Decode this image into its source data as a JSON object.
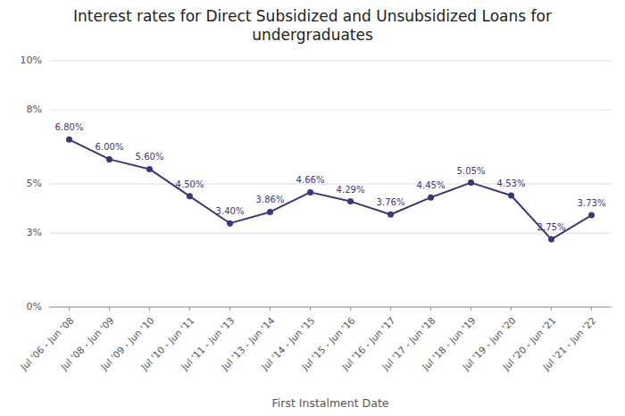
{
  "chart_data": {
    "type": "line",
    "title": "Interest rates for Direct Subsidized and Unsubsidized Loans for\nundergraduates",
    "xlabel": "First Instalment Date",
    "categories": [
      "Jul '06 - Jun '08",
      "Jul '08 - Jun '09",
      "Jul '09 - Jun '10",
      "Jul '10 - Jun '11",
      "Jul '11 - Jun '13",
      "Jul '13 - Jun '14",
      "Jul '14 - Jun '15",
      "Jul '15 - Jun '16",
      "Jul '16 - Jun '17",
      "Jul '17 - Jun '18",
      "Jul '18 - Jun '19",
      "Jul '19 - Jun '20",
      "Jul '20 - Jun '21",
      "Jul '21 - Jun '22"
    ],
    "values": [
      6.8,
      6.0,
      5.6,
      4.5,
      3.4,
      3.86,
      4.66,
      4.29,
      3.76,
      4.45,
      5.05,
      4.53,
      2.75,
      3.73
    ],
    "value_labels": [
      "6.80%",
      "6.00%",
      "5.60%",
      "4.50%",
      "3.40%",
      "3.86%",
      "4.66%",
      "4.29%",
      "3.76%",
      "4.45%",
      "5.05%",
      "4.53%",
      "2.75%",
      "3.73%"
    ],
    "data_labels": true,
    "color": "#3d3580",
    "marker": "circle",
    "ylim": [
      0,
      10
    ],
    "yticks": [
      {
        "value": 0,
        "label": "0%"
      },
      {
        "value": 3,
        "label": "3%"
      },
      {
        "value": 5,
        "label": "5%"
      },
      {
        "value": 8,
        "label": "8%"
      },
      {
        "value": 10,
        "label": "10%"
      }
    ],
    "grid": true
  }
}
